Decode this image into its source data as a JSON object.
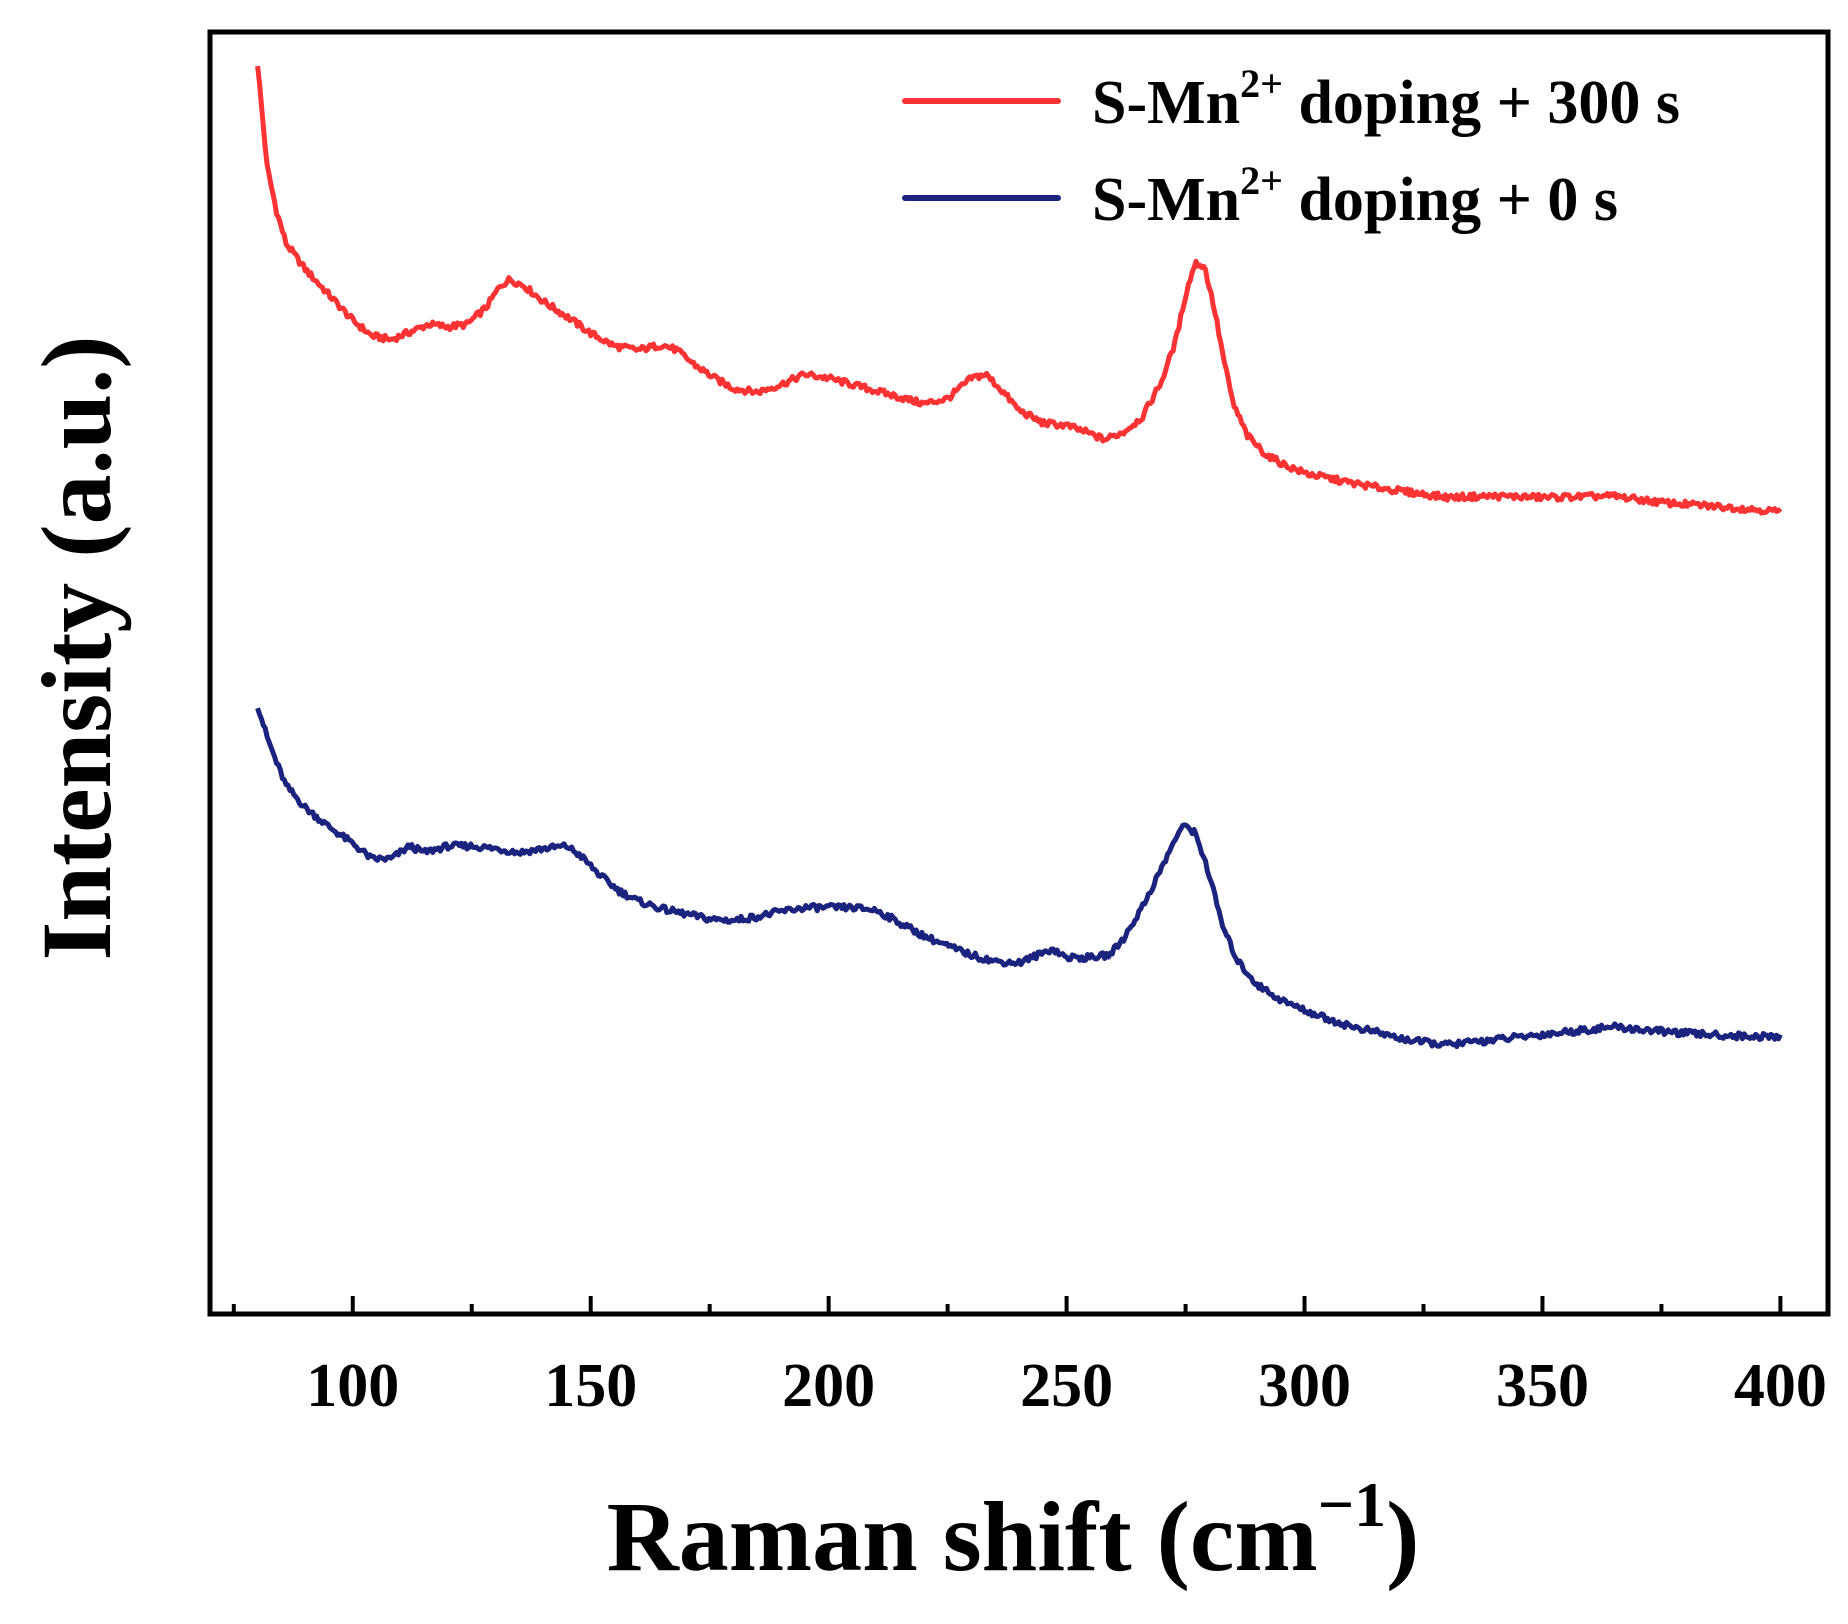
{
  "chart_data": {
    "type": "line",
    "title": "",
    "xlabel": "Raman shift (cm",
    "xlabel_sup": "−1",
    "xlabel_close": ")",
    "ylabel": "Intensity (a.u.)",
    "xlim": [
      70,
      410
    ],
    "ylim": [
      0,
      10
    ],
    "x_ticks": [
      100,
      150,
      200,
      250,
      300,
      350,
      400
    ],
    "x_tick_labels": [
      "100",
      "150",
      "200",
      "250",
      "300",
      "350",
      "400"
    ],
    "y_ticks_visible": false,
    "grid": false,
    "legend_position": "top-right",
    "series": [
      {
        "name": "S-Mn2+ doping + 300 s",
        "legend": {
          "prefix": "S-Mn",
          "sup": "2+",
          "suffix": " doping + 300 s"
        },
        "color": "#ff3333",
        "points": [
          [
            80,
            9.75
          ],
          [
            82,
            8.95
          ],
          [
            84,
            8.6
          ],
          [
            86,
            8.35
          ],
          [
            90,
            8.15
          ],
          [
            95,
            7.95
          ],
          [
            100,
            7.75
          ],
          [
            104,
            7.63
          ],
          [
            108,
            7.6
          ],
          [
            112,
            7.66
          ],
          [
            116,
            7.72
          ],
          [
            120,
            7.7
          ],
          [
            124,
            7.72
          ],
          [
            128,
            7.85
          ],
          [
            131,
            8.02
          ],
          [
            133,
            8.07
          ],
          [
            136,
            8.02
          ],
          [
            140,
            7.9
          ],
          [
            145,
            7.78
          ],
          [
            150,
            7.65
          ],
          [
            155,
            7.55
          ],
          [
            160,
            7.52
          ],
          [
            165,
            7.56
          ],
          [
            168,
            7.52
          ],
          [
            172,
            7.4
          ],
          [
            176,
            7.3
          ],
          [
            180,
            7.22
          ],
          [
            185,
            7.19
          ],
          [
            190,
            7.25
          ],
          [
            195,
            7.33
          ],
          [
            200,
            7.3
          ],
          [
            205,
            7.25
          ],
          [
            210,
            7.2
          ],
          [
            215,
            7.15
          ],
          [
            220,
            7.1
          ],
          [
            225,
            7.14
          ],
          [
            230,
            7.3
          ],
          [
            233,
            7.33
          ],
          [
            236,
            7.22
          ],
          [
            240,
            7.05
          ],
          [
            245,
            6.95
          ],
          [
            250,
            6.93
          ],
          [
            254,
            6.88
          ],
          [
            258,
            6.82
          ],
          [
            262,
            6.88
          ],
          [
            266,
            7.0
          ],
          [
            270,
            7.28
          ],
          [
            273,
            7.6
          ],
          [
            275,
            7.95
          ],
          [
            277,
            8.2
          ],
          [
            279,
            8.17
          ],
          [
            281,
            7.85
          ],
          [
            283,
            7.45
          ],
          [
            285,
            7.1
          ],
          [
            288,
            6.85
          ],
          [
            292,
            6.7
          ],
          [
            296,
            6.62
          ],
          [
            300,
            6.56
          ],
          [
            310,
            6.48
          ],
          [
            320,
            6.42
          ],
          [
            330,
            6.37
          ],
          [
            340,
            6.38
          ],
          [
            350,
            6.37
          ],
          [
            365,
            6.38
          ],
          [
            375,
            6.33
          ],
          [
            390,
            6.29
          ],
          [
            400,
            6.26
          ]
        ]
      },
      {
        "name": "S-Mn2+ doping + 0 s",
        "legend": {
          "prefix": "S-Mn",
          "sup": "2+",
          "suffix": " doping + 0 s"
        },
        "color": "#1a237e",
        "points": [
          [
            80,
            4.75
          ],
          [
            82,
            4.5
          ],
          [
            84,
            4.3
          ],
          [
            86,
            4.12
          ],
          [
            90,
            3.95
          ],
          [
            95,
            3.8
          ],
          [
            100,
            3.67
          ],
          [
            104,
            3.55
          ],
          [
            108,
            3.55
          ],
          [
            112,
            3.65
          ],
          [
            115,
            3.6
          ],
          [
            120,
            3.65
          ],
          [
            125,
            3.65
          ],
          [
            130,
            3.63
          ],
          [
            135,
            3.6
          ],
          [
            140,
            3.63
          ],
          [
            145,
            3.65
          ],
          [
            148,
            3.57
          ],
          [
            152,
            3.42
          ],
          [
            156,
            3.3
          ],
          [
            160,
            3.22
          ],
          [
            165,
            3.16
          ],
          [
            170,
            3.12
          ],
          [
            175,
            3.08
          ],
          [
            180,
            3.07
          ],
          [
            185,
            3.1
          ],
          [
            190,
            3.14
          ],
          [
            195,
            3.17
          ],
          [
            200,
            3.17
          ],
          [
            205,
            3.17
          ],
          [
            210,
            3.15
          ],
          [
            215,
            3.05
          ],
          [
            220,
            2.95
          ],
          [
            225,
            2.87
          ],
          [
            230,
            2.8
          ],
          [
            235,
            2.75
          ],
          [
            240,
            2.74
          ],
          [
            244,
            2.8
          ],
          [
            247,
            2.85
          ],
          [
            250,
            2.78
          ],
          [
            255,
            2.78
          ],
          [
            259,
            2.8
          ],
          [
            262,
            2.93
          ],
          [
            266,
            3.18
          ],
          [
            270,
            3.48
          ],
          [
            273,
            3.72
          ],
          [
            275,
            3.82
          ],
          [
            277,
            3.75
          ],
          [
            279,
            3.55
          ],
          [
            281,
            3.28
          ],
          [
            283,
            3.0
          ],
          [
            286,
            2.75
          ],
          [
            290,
            2.57
          ],
          [
            295,
            2.45
          ],
          [
            300,
            2.37
          ],
          [
            305,
            2.3
          ],
          [
            310,
            2.24
          ],
          [
            315,
            2.2
          ],
          [
            320,
            2.15
          ],
          [
            325,
            2.12
          ],
          [
            330,
            2.1
          ],
          [
            340,
            2.14
          ],
          [
            350,
            2.18
          ],
          [
            360,
            2.22
          ],
          [
            365,
            2.24
          ],
          [
            370,
            2.22
          ],
          [
            380,
            2.19
          ],
          [
            390,
            2.17
          ],
          [
            400,
            2.16
          ]
        ]
      }
    ]
  }
}
